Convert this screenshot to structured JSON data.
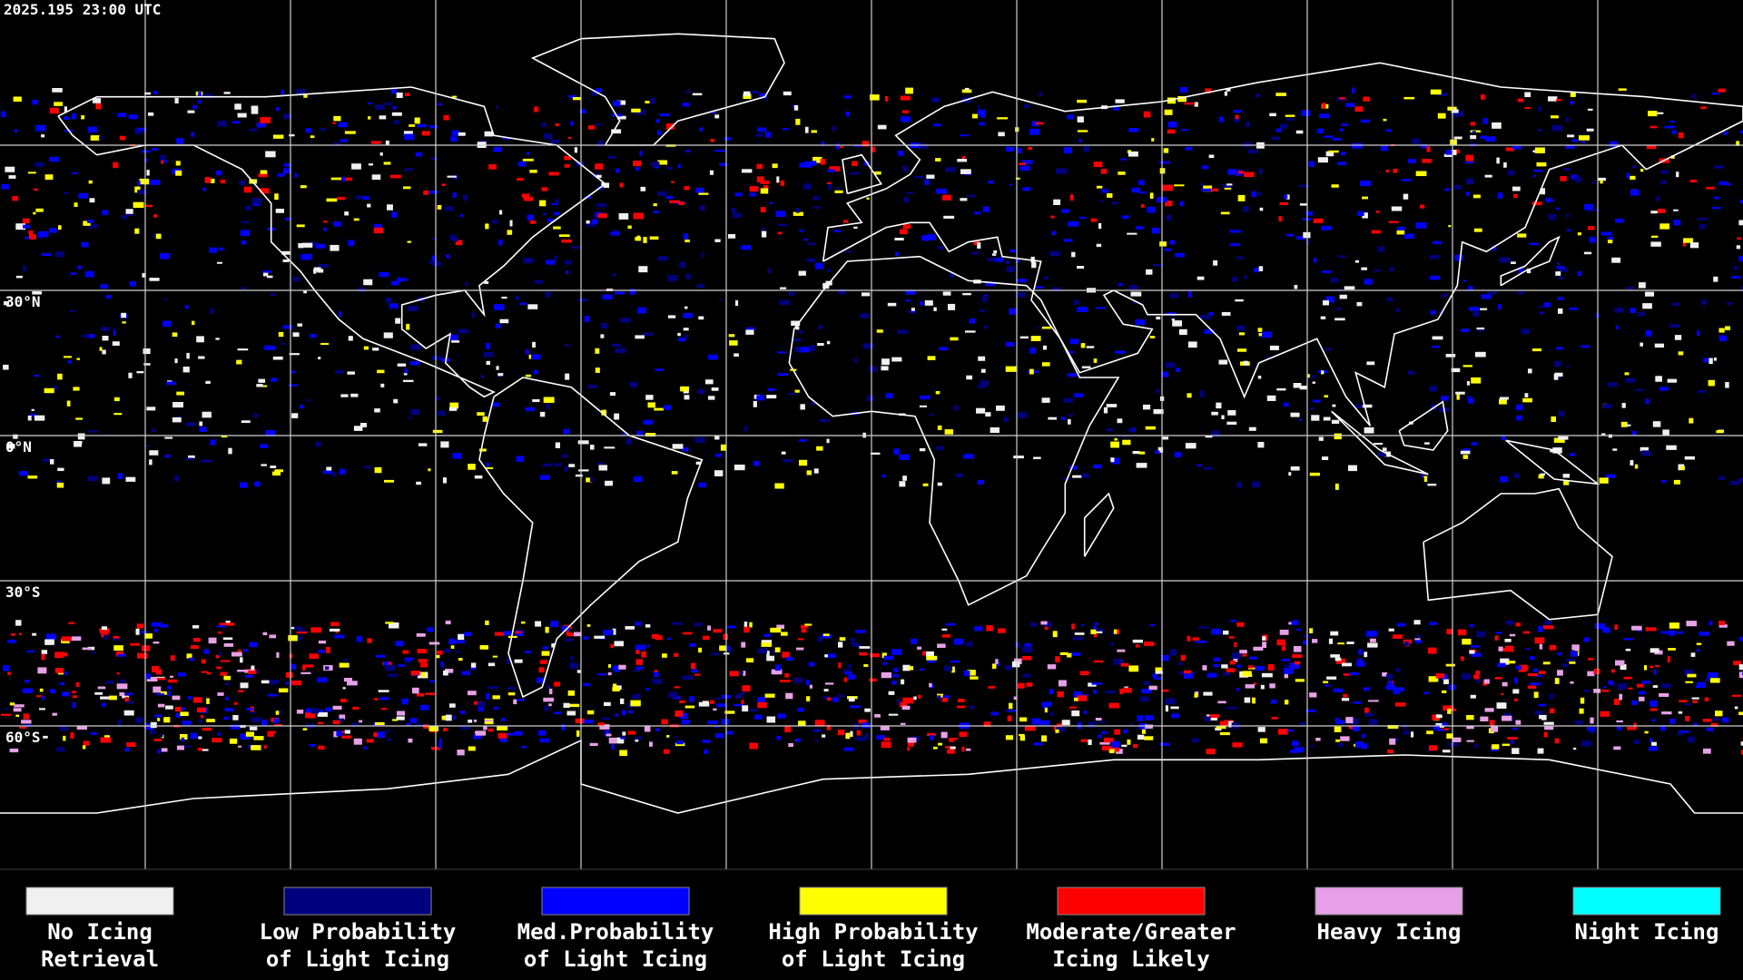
{
  "timestamp": "2025.195 23:00 UTC",
  "map": {
    "latitude_labels": [
      "30°N",
      "0°N",
      "30°S",
      "60°S"
    ]
  },
  "legend": [
    {
      "color": "#f0f0f0",
      "lines": [
        "No Icing",
        "Retrieval"
      ]
    },
    {
      "color": "#00007f",
      "lines": [
        "Low Probability",
        "of Light Icing"
      ]
    },
    {
      "color": "#0000ff",
      "lines": [
        "Med.Probability",
        "of Light Icing"
      ]
    },
    {
      "color": "#ffff00",
      "lines": [
        "High Probability",
        "of Light Icing"
      ]
    },
    {
      "color": "#ff0000",
      "lines": [
        "Moderate/Greater",
        "Icing Likely"
      ]
    },
    {
      "color": "#e6a0e6",
      "lines": [
        "Heavy Icing"
      ]
    },
    {
      "color": "#00ffff",
      "lines": [
        "Night Icing"
      ]
    }
  ]
}
